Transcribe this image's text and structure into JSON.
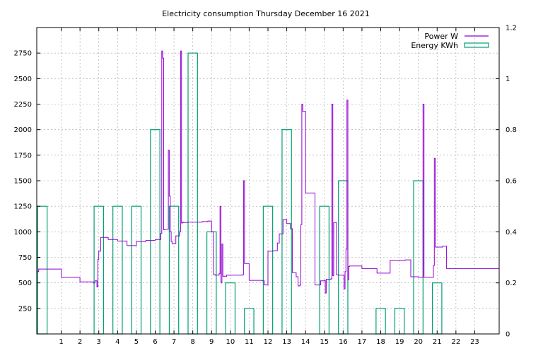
{
  "chart_data": {
    "type": "line",
    "title": "Electricity consumption Thursday December 16 2021",
    "xlabel": "",
    "ylabel": "",
    "y2label": "",
    "xlim": [
      -0.3,
      24.3
    ],
    "ylim": [
      0,
      3000
    ],
    "y2lim": [
      0,
      1.2
    ],
    "x_ticks": [
      1,
      2,
      3,
      4,
      5,
      6,
      7,
      8,
      9,
      10,
      11,
      12,
      13,
      14,
      15,
      16,
      17,
      18,
      19,
      20,
      21,
      22,
      23
    ],
    "y_ticks": [
      250,
      500,
      750,
      1000,
      1250,
      1500,
      1750,
      2000,
      2250,
      2500,
      2750
    ],
    "y2_ticks": [
      0,
      0.2,
      0.4,
      0.6,
      0.8,
      1,
      1.2
    ],
    "y2_tick_labels": [
      "0",
      "0.2",
      "0.4",
      "0.6",
      "0.8",
      "1",
      "1.2"
    ],
    "grid": true,
    "legend_position": "top-right",
    "colors": {
      "power": "#9400d3",
      "energy": "#009e73"
    },
    "series": [
      {
        "name": "Power W",
        "axis": "left",
        "style": "step",
        "x": [
          -0.3,
          -0.2,
          1.0,
          2.0,
          2.7,
          2.8,
          2.9,
          2.95,
          3.0,
          3.1,
          3.5,
          4.0,
          4.5,
          5.0,
          5.5,
          6.0,
          6.3,
          6.35,
          6.4,
          6.45,
          6.5,
          6.7,
          6.75,
          6.8,
          6.85,
          6.9,
          7.1,
          7.3,
          7.35,
          7.4,
          7.45,
          7.5,
          7.7,
          8.0,
          8.5,
          8.8,
          9.0,
          9.1,
          9.2,
          9.4,
          9.45,
          9.5,
          9.55,
          9.6,
          9.8,
          10.3,
          10.65,
          10.7,
          10.75,
          11.0,
          11.7,
          11.8,
          12.0,
          12.25,
          12.5,
          12.6,
          12.8,
          13.0,
          13.2,
          13.3,
          13.5,
          13.6,
          13.7,
          13.75,
          13.8,
          13.85,
          14.0,
          14.5,
          14.8,
          15.0,
          15.05,
          15.1,
          15.35,
          15.4,
          15.45,
          15.5,
          15.65,
          15.75,
          16.0,
          16.05,
          16.1,
          16.15,
          16.2,
          16.25,
          16.3,
          16.35,
          16.4,
          17.0,
          17.8,
          18.5,
          19.3,
          19.6,
          20.0,
          20.2,
          20.25,
          20.3,
          20.4,
          20.8,
          20.85,
          20.9,
          21.3,
          21.5,
          22.0,
          23.0,
          24.3
        ],
        "y": [
          610,
          635,
          555,
          510,
          500,
          520,
          460,
          730,
          810,
          945,
          925,
          910,
          865,
          905,
          915,
          925,
          985,
          2770,
          2700,
          1020,
          1025,
          1800,
          1350,
          1000,
          905,
          885,
          960,
          1000,
          2770,
          1085,
          1095,
          1090,
          1095,
          1095,
          1100,
          1105,
          1000,
          580,
          575,
          590,
          1250,
          500,
          880,
          565,
          575,
          575,
          580,
          1500,
          690,
          525,
          520,
          480,
          810,
          815,
          890,
          980,
          1120,
          1080,
          1030,
          600,
          560,
          470,
          480,
          1070,
          2250,
          2180,
          1380,
          480,
          520,
          525,
          400,
          535,
          540,
          2250,
          570,
          1090,
          580,
          575,
          575,
          440,
          610,
          830,
          2290,
          530,
          660,
          665,
          665,
          640,
          595,
          720,
          725,
          560,
          555,
          555,
          2250,
          555,
          555,
          670,
          1720,
          850,
          860,
          640,
          640,
          640,
          610
        ]
      },
      {
        "name": "Energy KWh",
        "axis": "right",
        "style": "boxes",
        "x": [
          0,
          1,
          2,
          3,
          4,
          5,
          6,
          7,
          8,
          9,
          10,
          11,
          12,
          13,
          14,
          15,
          16,
          17,
          18,
          19,
          20,
          21,
          22,
          23
        ],
        "values": [
          0.5,
          0,
          0,
          0.5,
          0.5,
          0.5,
          0.8,
          0.5,
          1.1,
          0.4,
          0.2,
          0.1,
          0.5,
          0.8,
          0,
          0.5,
          0.6,
          0,
          0.1,
          0.1,
          0.6,
          0.2,
          0,
          0
        ]
      }
    ]
  }
}
